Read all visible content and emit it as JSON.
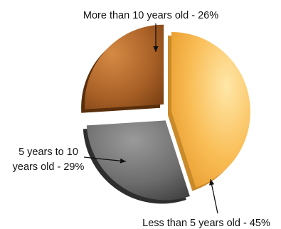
{
  "chart_data": {
    "type": "pie",
    "title": "",
    "slices": [
      {
        "label": "Less than 5 years old - 45%",
        "label_lines": [
          "Less than 5 years old - 45%"
        ],
        "value": 45,
        "color": "#f9b850",
        "exploded": false
      },
      {
        "label": "5 years to 10 years old - 29%",
        "label_lines": [
          "5 years to 10",
          "years old - 29%"
        ],
        "value": 29,
        "color": "#6e6e6e",
        "exploded": true
      },
      {
        "label": "More than 10 years old - 26%",
        "label_lines": [
          "More than 10 years old - 26%"
        ],
        "value": 26,
        "color": "#a95f25",
        "exploded": true
      }
    ],
    "legend": "none",
    "style": "3d-exploded"
  }
}
